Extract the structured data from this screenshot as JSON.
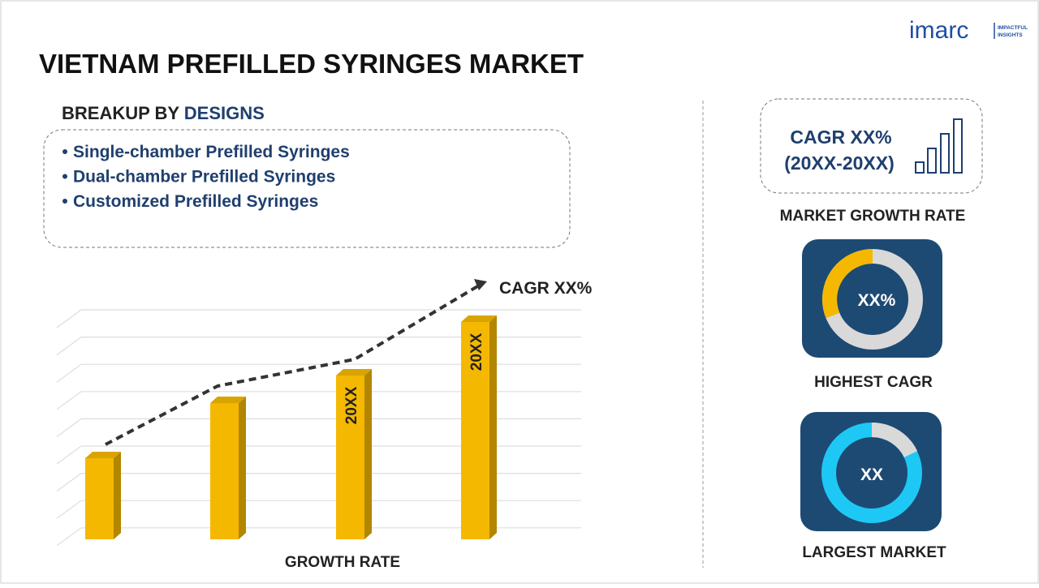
{
  "logo": {
    "brand": "imarc",
    "tagline_1": "IMPACTFUL",
    "tagline_2": "INSIGHTS"
  },
  "title": "VIETNAM PREFILLED SYRINGES MARKET",
  "breakup": {
    "label": "BREAKUP BY",
    "highlight": "DESIGNS",
    "items": [
      "Single-chamber Prefilled Syringes",
      "Dual-chamber Prefilled Syringes",
      "Customized Prefilled Syringes"
    ]
  },
  "growth_chart": {
    "annotation": "CAGR XX%",
    "bar_labels": [
      "20XX",
      "20XX"
    ],
    "axis_label": "GROWTH RATE"
  },
  "cagr_box": {
    "line_1": "CAGR XX%",
    "line_2": "(20XX-20XX)",
    "caption": "MARKET GROWTH RATE"
  },
  "highest_cagr": {
    "value": "XX%",
    "caption": "HIGHEST CAGR"
  },
  "largest_market": {
    "value": "XX",
    "caption": "LARGEST MARKET"
  }
}
